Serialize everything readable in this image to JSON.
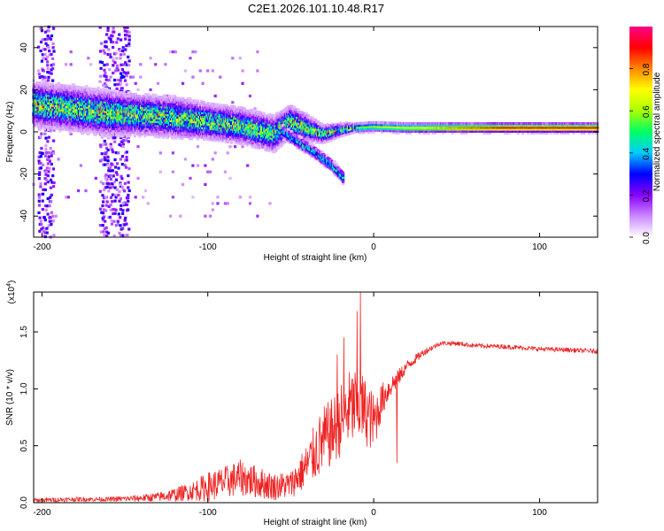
{
  "title": "C2E1.2026.101.10.48.R17",
  "chart_data": [
    {
      "type": "heatmap",
      "name": "spectrogram",
      "xlabel": "Height of straight line (km)",
      "ylabel": "Frequency (Hz)",
      "xlim": [
        -205,
        135
      ],
      "ylim": [
        -50,
        50
      ],
      "xticks": [
        -200,
        -100,
        0,
        100
      ],
      "yticks": [
        -40,
        -20,
        0,
        20,
        40
      ],
      "xtick_labels": [
        "-200",
        "-100",
        "0",
        "100"
      ],
      "ytick_labels": [
        "-40",
        "-20",
        "0",
        "20",
        "40"
      ],
      "ridge": {
        "x": [
          -205,
          -180,
          -160,
          -140,
          -120,
          -100,
          -80,
          -60,
          -50,
          -40,
          -30,
          -20,
          -10,
          0,
          20,
          60,
          100,
          135
        ],
        "freq": [
          13,
          11,
          9,
          8,
          7,
          5,
          3,
          -1,
          5,
          2,
          -1,
          1,
          2,
          2.5,
          2,
          2,
          2,
          2
        ],
        "width": [
          10,
          10,
          10,
          9,
          9,
          8,
          8,
          8,
          7,
          6,
          4,
          3,
          2,
          2,
          2,
          2,
          2,
          2
        ]
      },
      "branch": {
        "x": [
          -55,
          -45,
          -35,
          -25,
          -18
        ],
        "freq": [
          0,
          -5,
          -10,
          -16,
          -22
        ]
      },
      "scatter_bands": [
        [
          -202,
          -193
        ],
        [
          -165,
          -148
        ]
      ],
      "colorbar": {
        "label": "Normalized spectral amplitude",
        "range": [
          0,
          1
        ],
        "ticks": [
          0,
          0.2,
          0.4,
          0.6,
          0.8
        ],
        "tick_labels": [
          "0.0",
          "0.2",
          "0.4",
          "0.6",
          "0.8"
        ],
        "colors": [
          "#ffffff",
          "#cc88ff",
          "#8800ff",
          "#0000ff",
          "#00ccff",
          "#00ff66",
          "#aaff00",
          "#ffff00",
          "#ff8800",
          "#ff0000",
          "#ff0088"
        ]
      }
    },
    {
      "type": "line",
      "name": "snr",
      "xlabel": "Height of straight line (km)",
      "ylabel": "SNR (10 * v/v)",
      "y_multiplier": "(x10",
      "y_multiplier_exp": "4",
      "y_multiplier_close": ")",
      "xlim": [
        -205,
        135
      ],
      "ylim": [
        0,
        1.85
      ],
      "xticks": [
        -200,
        -100,
        0,
        100
      ],
      "yticks": [
        0,
        0.5,
        1.0,
        1.5
      ],
      "xtick_labels": [
        "-200",
        "-100",
        "0",
        "100"
      ],
      "ytick_labels": [
        "0.0",
        "0.5",
        "1.0",
        "1.5"
      ],
      "color": "#ee2222",
      "series": {
        "name": "SNR",
        "x": [
          -205,
          -180,
          -160,
          -140,
          -130,
          -120,
          -110,
          -100,
          -90,
          -80,
          -70,
          -60,
          -50,
          -45,
          -40,
          -35,
          -30,
          -25,
          -20,
          -15,
          -10,
          -5,
          0,
          5,
          10,
          15,
          20,
          30,
          40,
          50,
          60,
          80,
          100,
          120,
          135
        ],
        "mean": [
          0.02,
          0.03,
          0.03,
          0.04,
          0.05,
          0.07,
          0.1,
          0.14,
          0.18,
          0.22,
          0.18,
          0.14,
          0.16,
          0.24,
          0.33,
          0.45,
          0.55,
          0.62,
          0.72,
          0.82,
          0.85,
          0.8,
          0.7,
          0.9,
          1.02,
          1.1,
          1.2,
          1.32,
          1.4,
          1.4,
          1.38,
          1.37,
          1.35,
          1.34,
          1.33
        ],
        "spread": [
          0.02,
          0.02,
          0.02,
          0.03,
          0.04,
          0.06,
          0.08,
          0.13,
          0.14,
          0.16,
          0.14,
          0.12,
          0.12,
          0.16,
          0.2,
          0.26,
          0.3,
          0.3,
          0.32,
          0.34,
          0.36,
          0.3,
          0.26,
          0.15,
          0.1,
          0.07,
          0.05,
          0.03,
          0.02,
          0.02,
          0.02,
          0.02,
          0.02,
          0.02,
          0.02
        ]
      },
      "spikes": [
        {
          "x": -8,
          "y": 1.85
        },
        {
          "x": -10,
          "y": 1.68
        },
        {
          "x": -18,
          "y": 1.45
        },
        {
          "x": -22,
          "y": 1.3
        },
        {
          "x": 14,
          "y": 0.35
        }
      ]
    }
  ]
}
